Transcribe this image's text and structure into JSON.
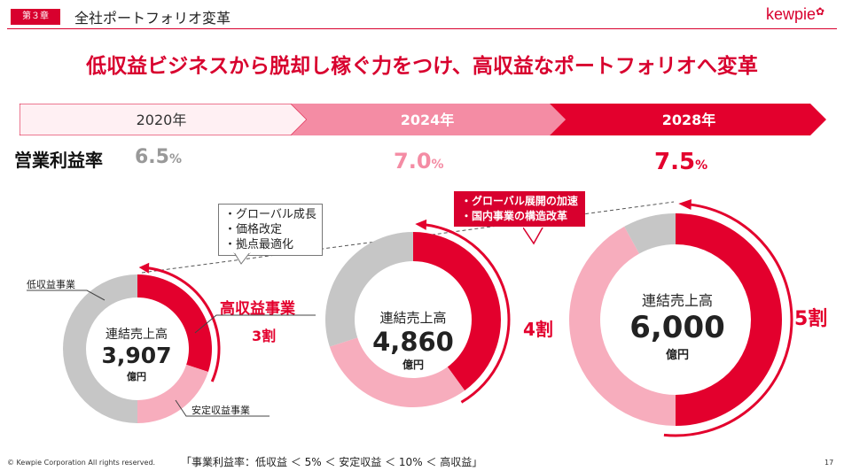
{
  "header": {
    "chapter": "第３章",
    "title": "全社ポートフォリオ変革",
    "logo": "kewpie"
  },
  "headline": "低収益ビジネスから脱却し稼ぐ力をつけ、高収益なポートフォリオへ変革",
  "timeline": [
    {
      "label": "2020年"
    },
    {
      "label": "2024年"
    },
    {
      "label": "2028年"
    }
  ],
  "margin": {
    "label": "営業利益率",
    "values": [
      "6.5",
      "7.0",
      "7.5"
    ],
    "unit": "%"
  },
  "callouts": {
    "first": [
      "・グローバル成長",
      "・価格改定",
      "・拠点最適化"
    ],
    "second": [
      "・グローバル展開の加速",
      "・国内事業の構造改革"
    ]
  },
  "labels": {
    "low": "低収益事業",
    "stable": "安定収益事業",
    "high": "高収益事業"
  },
  "donut_center": {
    "title": "連結売上高",
    "unit": "億円"
  },
  "chart_data": [
    {
      "type": "pie",
      "year": "2020年",
      "total_label": "3,907",
      "high_share_label": "3割",
      "slices": [
        {
          "name": "高収益事業",
          "value": 30
        },
        {
          "name": "安定収益事業",
          "value": 20
        },
        {
          "name": "低収益事業",
          "value": 50
        }
      ]
    },
    {
      "type": "pie",
      "year": "2024年",
      "total_label": "4,860",
      "high_share_label": "4割",
      "slices": [
        {
          "name": "高収益事業",
          "value": 40
        },
        {
          "name": "安定収益事業",
          "value": 30
        },
        {
          "name": "低収益事業",
          "value": 30
        }
      ]
    },
    {
      "type": "pie",
      "year": "2028年",
      "total_label": "6,000",
      "high_share_label": "5割",
      "slices": [
        {
          "name": "高収益事業",
          "value": 50
        },
        {
          "name": "安定収益事業",
          "value": 42
        },
        {
          "name": "低収益事業",
          "value": 8
        }
      ]
    }
  ],
  "colors": {
    "high": "#e3002d",
    "stable": "#f7adbd",
    "low": "#c6c6c6",
    "accent": "#d8002e"
  },
  "footer": {
    "copyright": "© Kewpie Corporation All rights reserved.",
    "note": "「事業利益率：低収益 ＜ 5% ＜ 安定収益 ＜ 10% ＜ 高収益」",
    "page": "17"
  }
}
